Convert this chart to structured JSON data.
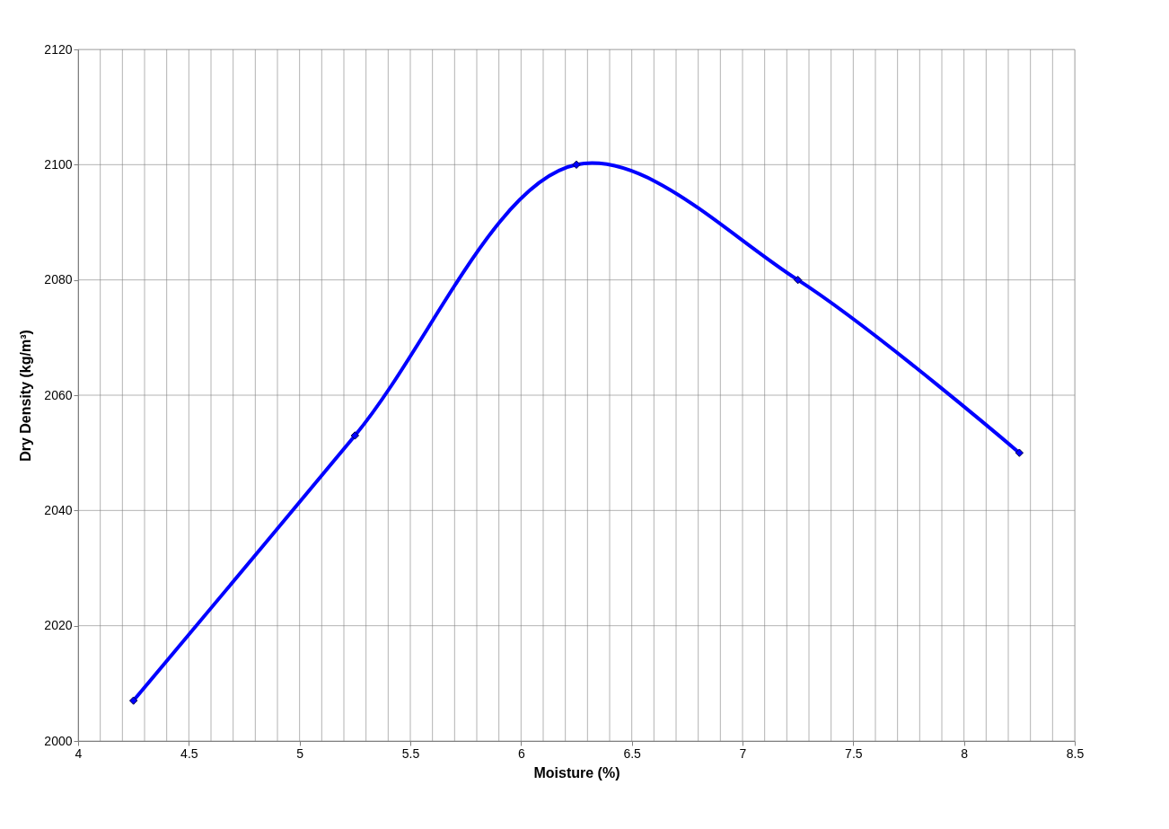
{
  "chart_data": {
    "type": "line",
    "xlabel": "Moisture (%)",
    "ylabel": "Dry Density (kg/m³)",
    "x": [
      4.25,
      5.25,
      6.25,
      7.25,
      8.25
    ],
    "series": [
      {
        "color": "#0000ff",
        "values": [
          2007,
          2053,
          2100,
          2080,
          2050
        ]
      }
    ],
    "xlim": [
      4,
      8.5
    ],
    "xticks": [
      4,
      {
        "value": 4.1,
        "label": null
      },
      {
        "value": 4.2,
        "label": null
      },
      {
        "value": 4.3,
        "label": null
      },
      {
        "value": 4.4,
        "label": null
      },
      4.5,
      {
        "value": 4.6,
        "label": null
      },
      {
        "value": 4.7,
        "label": null
      },
      {
        "value": 4.8,
        "label": null
      },
      {
        "value": 4.9,
        "label": null
      },
      5,
      {
        "value": 5.1,
        "label": null
      },
      {
        "value": 5.2,
        "label": null
      },
      {
        "value": 5.3,
        "label": null
      },
      {
        "value": 5.4,
        "label": null
      },
      5.5,
      {
        "value": 5.6,
        "label": null
      },
      {
        "value": 5.7,
        "label": null
      },
      {
        "value": 5.8,
        "label": null
      },
      {
        "value": 5.9,
        "label": null
      },
      6,
      {
        "value": 6.1,
        "label": null
      },
      {
        "value": 6.2,
        "label": null
      },
      {
        "value": 6.3,
        "label": null
      },
      {
        "value": 6.4,
        "label": null
      },
      6.5,
      {
        "value": 6.6,
        "label": null
      },
      {
        "value": 6.7,
        "label": null
      },
      {
        "value": 6.8,
        "label": null
      },
      {
        "value": 6.9,
        "label": null
      },
      7,
      {
        "value": 7.1,
        "label": null
      },
      {
        "value": 7.2,
        "label": null
      },
      {
        "value": 7.3,
        "label": null
      },
      {
        "value": 7.4,
        "label": null
      },
      7.5,
      {
        "value": 7.6,
        "label": null
      },
      {
        "value": 7.7,
        "label": null
      },
      {
        "value": 7.8,
        "label": null
      },
      {
        "value": 7.9,
        "label": null
      },
      8,
      {
        "value": 8.1,
        "label": null
      },
      {
        "value": 8.2,
        "label": null
      },
      {
        "value": 8.3,
        "label": null
      },
      {
        "value": 8.4,
        "label": null
      },
      8.5
    ],
    "ylim": [
      2000,
      2120
    ],
    "yticks": [
      2000,
      2020,
      2040,
      2060,
      2080,
      2100,
      2120
    ],
    "grid": true,
    "marker": "diamond",
    "line_style": "solid"
  }
}
